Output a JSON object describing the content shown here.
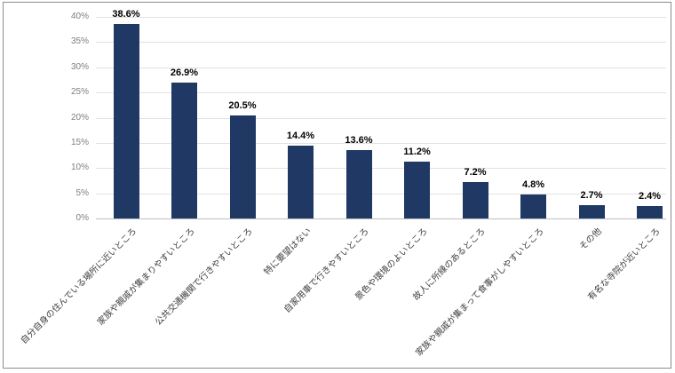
{
  "chart_data": {
    "type": "bar",
    "title": "",
    "xlabel": "",
    "ylabel": "",
    "categories": [
      "自分自身の住んでいる場所に近いところ",
      "家族や親戚が集まりやすいところ",
      "公共交通機関で行きやすいところ",
      "特に要望はない",
      "自家用車で行きやすいところ",
      "景色や環境のよいところ",
      "故人に所縁のあるところ",
      "家族や親戚が集まって食事がしやすいところ",
      "その他",
      "有名な寺院が近いところ"
    ],
    "values": [
      38.6,
      26.9,
      20.5,
      14.4,
      13.6,
      11.2,
      7.2,
      4.8,
      2.7,
      2.4
    ],
    "value_labels": [
      "38.6%",
      "26.9%",
      "20.5%",
      "14.4%",
      "13.6%",
      "11.2%",
      "7.2%",
      "4.8%",
      "2.7%",
      "2.4%"
    ],
    "ylim": [
      0,
      40
    ],
    "ytick_step": 5,
    "ytick_labels": [
      "0%",
      "5%",
      "10%",
      "15%",
      "20%",
      "25%",
      "30%",
      "35%",
      "40%"
    ],
    "grid": true,
    "legend": "none",
    "colors": {
      "bar": "#1f3864",
      "gridline": "#e2e2e2",
      "axis_line": "#bfbfbf",
      "ytick_label": "#7f7f7f",
      "category_label": "#404040",
      "value_label": "#000000",
      "frame_border": "#8c8c8c",
      "background": "#ffffff"
    }
  }
}
